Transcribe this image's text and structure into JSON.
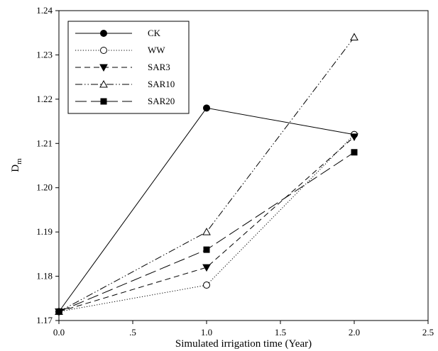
{
  "chart_data": {
    "type": "line",
    "title": "",
    "xlabel": "Simulated irrigation time (Year)",
    "ylabel": "D",
    "ylabel_sub": "m",
    "xlim": [
      0.0,
      2.5
    ],
    "ylim": [
      1.17,
      1.24
    ],
    "x_ticks": [
      0.0,
      0.5,
      1.0,
      1.5,
      2.0,
      2.5
    ],
    "x_tick_labels": [
      "0.0",
      ".5",
      "1.0",
      "1.5",
      "2.0",
      "2.5"
    ],
    "y_ticks": [
      1.17,
      1.18,
      1.19,
      1.2,
      1.21,
      1.22,
      1.23,
      1.24
    ],
    "y_tick_labels": [
      "1.17",
      "1.18",
      "1.19",
      "1.20",
      "1.21",
      "1.22",
      "1.23",
      "1.24"
    ],
    "grid": false,
    "legend_position": "top-left",
    "x": [
      0.0,
      1.0,
      2.0
    ],
    "series": [
      {
        "name": "CK",
        "values": [
          1.172,
          1.218,
          1.212
        ],
        "dash": "solid",
        "marker": "circle-filled"
      },
      {
        "name": "WW",
        "values": [
          1.172,
          1.178,
          1.212
        ],
        "dash": "dotted",
        "marker": "circle-open"
      },
      {
        "name": "SAR3",
        "values": [
          1.172,
          1.182,
          1.2115
        ],
        "dash": "dashed",
        "marker": "triangle-down-filled"
      },
      {
        "name": "SAR10",
        "values": [
          1.172,
          1.19,
          1.234
        ],
        "dash": "dash-dot-dot",
        "marker": "triangle-up-open"
      },
      {
        "name": "SAR20",
        "values": [
          1.172,
          1.186,
          1.208
        ],
        "dash": "long-dash",
        "marker": "square-filled"
      }
    ]
  }
}
